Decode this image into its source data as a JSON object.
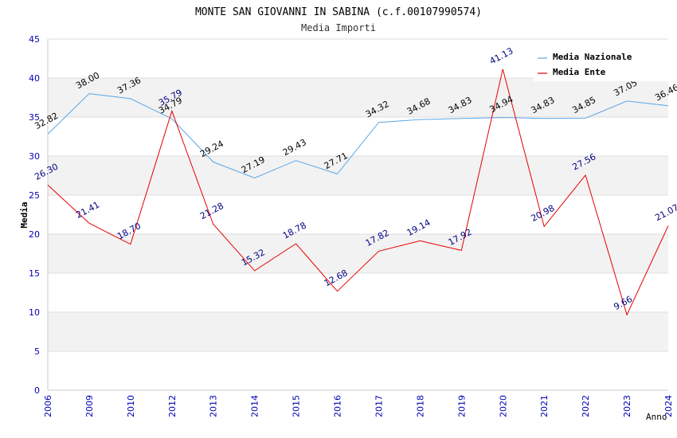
{
  "chart_data": {
    "type": "line",
    "title": "MONTE SAN GIOVANNI IN SABINA (c.f.00107990574)",
    "subtitle": "Media Importi",
    "xlabel": "Anno",
    "ylabel": "Media",
    "ylim": [
      0,
      45
    ],
    "y_ticks": [
      0,
      5,
      10,
      15,
      20,
      25,
      30,
      35,
      40,
      45
    ],
    "categories": [
      "2006",
      "2009",
      "2010",
      "2012",
      "2013",
      "2014",
      "2015",
      "2016",
      "2017",
      "2018",
      "2019",
      "2020",
      "2021",
      "2022",
      "2023",
      "2024"
    ],
    "grid": true,
    "legend_position": "top-right",
    "series": [
      {
        "name": "Media Nazionale",
        "color": "#5aa6e6",
        "label_color": "#000000",
        "values": [
          32.82,
          38.0,
          37.36,
          34.79,
          29.24,
          27.19,
          29.43,
          27.71,
          34.32,
          34.68,
          34.83,
          34.94,
          34.83,
          34.85,
          37.05,
          36.46
        ],
        "labels": [
          "32.82",
          "38.00",
          "37.36",
          "34.79",
          "29.24",
          "27.19",
          "29.43",
          "27.71",
          "34.32",
          "34.68",
          "34.83",
          "34.94",
          "34.83",
          "34.85",
          "37.05",
          "36.46"
        ]
      },
      {
        "name": "Media Ente",
        "color": "#e60000",
        "label_color": "#000080",
        "values": [
          26.3,
          21.41,
          18.7,
          35.79,
          21.28,
          15.32,
          18.78,
          12.68,
          17.82,
          19.14,
          17.92,
          41.13,
          20.98,
          27.56,
          9.66,
          21.07
        ],
        "labels": [
          "26.30",
          "21.41",
          "18.70",
          "35.79",
          "21.28",
          "15.32",
          "18.78",
          "12.68",
          "17.82",
          "19.14",
          "17.92",
          "41.13",
          "20.98",
          "27.56",
          "9.66",
          "21.07"
        ]
      }
    ],
    "colors": {
      "axis_text": "#0000b3",
      "title": "#000000",
      "subtitle": "#333333",
      "band": "#f2f2f2",
      "grid": "#dddddd"
    }
  }
}
